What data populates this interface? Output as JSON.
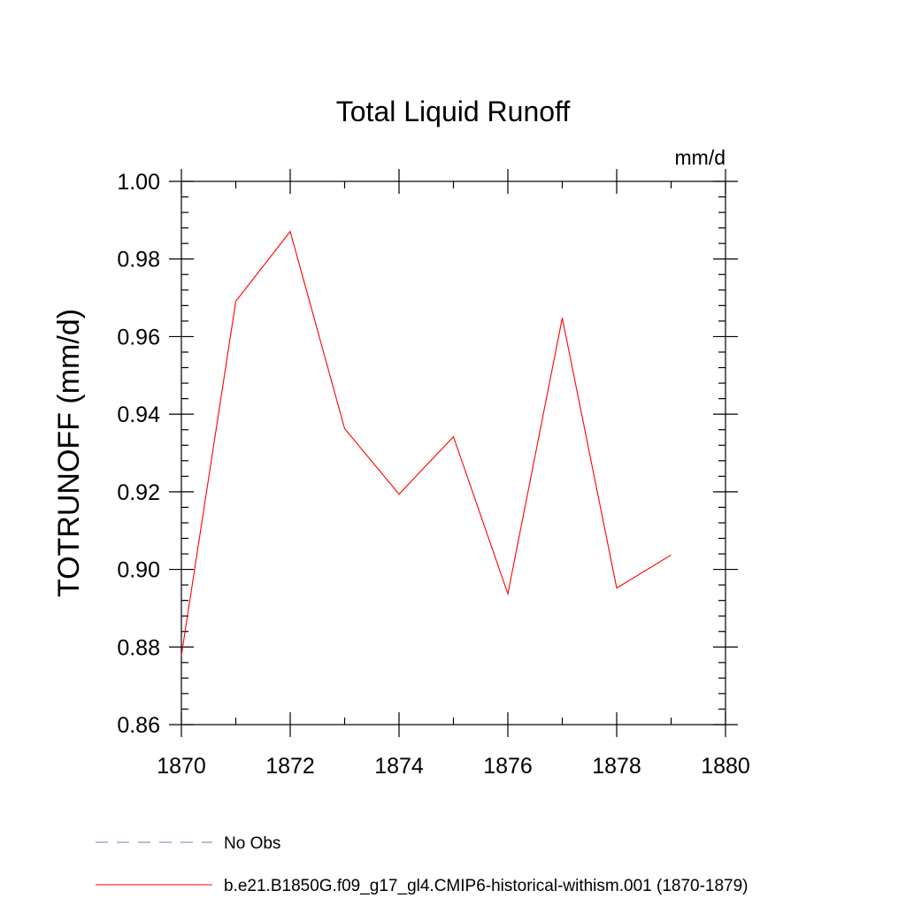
{
  "chart_data": {
    "type": "line",
    "title": "Total Liquid Runoff",
    "units": "mm/d",
    "xlabel": "",
    "ylabel": "TOTRUNOFF  (mm/d)",
    "xlim": [
      1870,
      1880
    ],
    "ylim": [
      0.86,
      1.0
    ],
    "x_ticks": [
      1870,
      1872,
      1874,
      1876,
      1878,
      1880
    ],
    "x_tick_labels": [
      "1870",
      "1872",
      "1874",
      "1876",
      "1878",
      "1880"
    ],
    "y_ticks": [
      0.86,
      0.88,
      0.9,
      0.92,
      0.94,
      0.96,
      0.98,
      1.0
    ],
    "y_tick_labels": [
      "0.86",
      "0.88",
      "0.90",
      "0.92",
      "0.94",
      "0.96",
      "0.98",
      "1.00"
    ],
    "grid": false,
    "legend_position": "bottom-left",
    "series": [
      {
        "name": "b.e21.B1850G.f09_g17_gl4.CMIP6-historical-withism.001 (1870-1879)",
        "color": "#ff0000",
        "style": "solid",
        "x": [
          1870,
          1871,
          1872,
          1873,
          1874,
          1875,
          1876,
          1877,
          1878,
          1879
        ],
        "y": [
          0.8778,
          0.9691,
          0.9871,
          0.9363,
          0.9194,
          0.9342,
          0.8937,
          0.9648,
          0.8952,
          0.9037
        ]
      },
      {
        "name": "No Obs",
        "color": "#8070c0",
        "style": "dashed",
        "x": [],
        "y": []
      }
    ]
  }
}
